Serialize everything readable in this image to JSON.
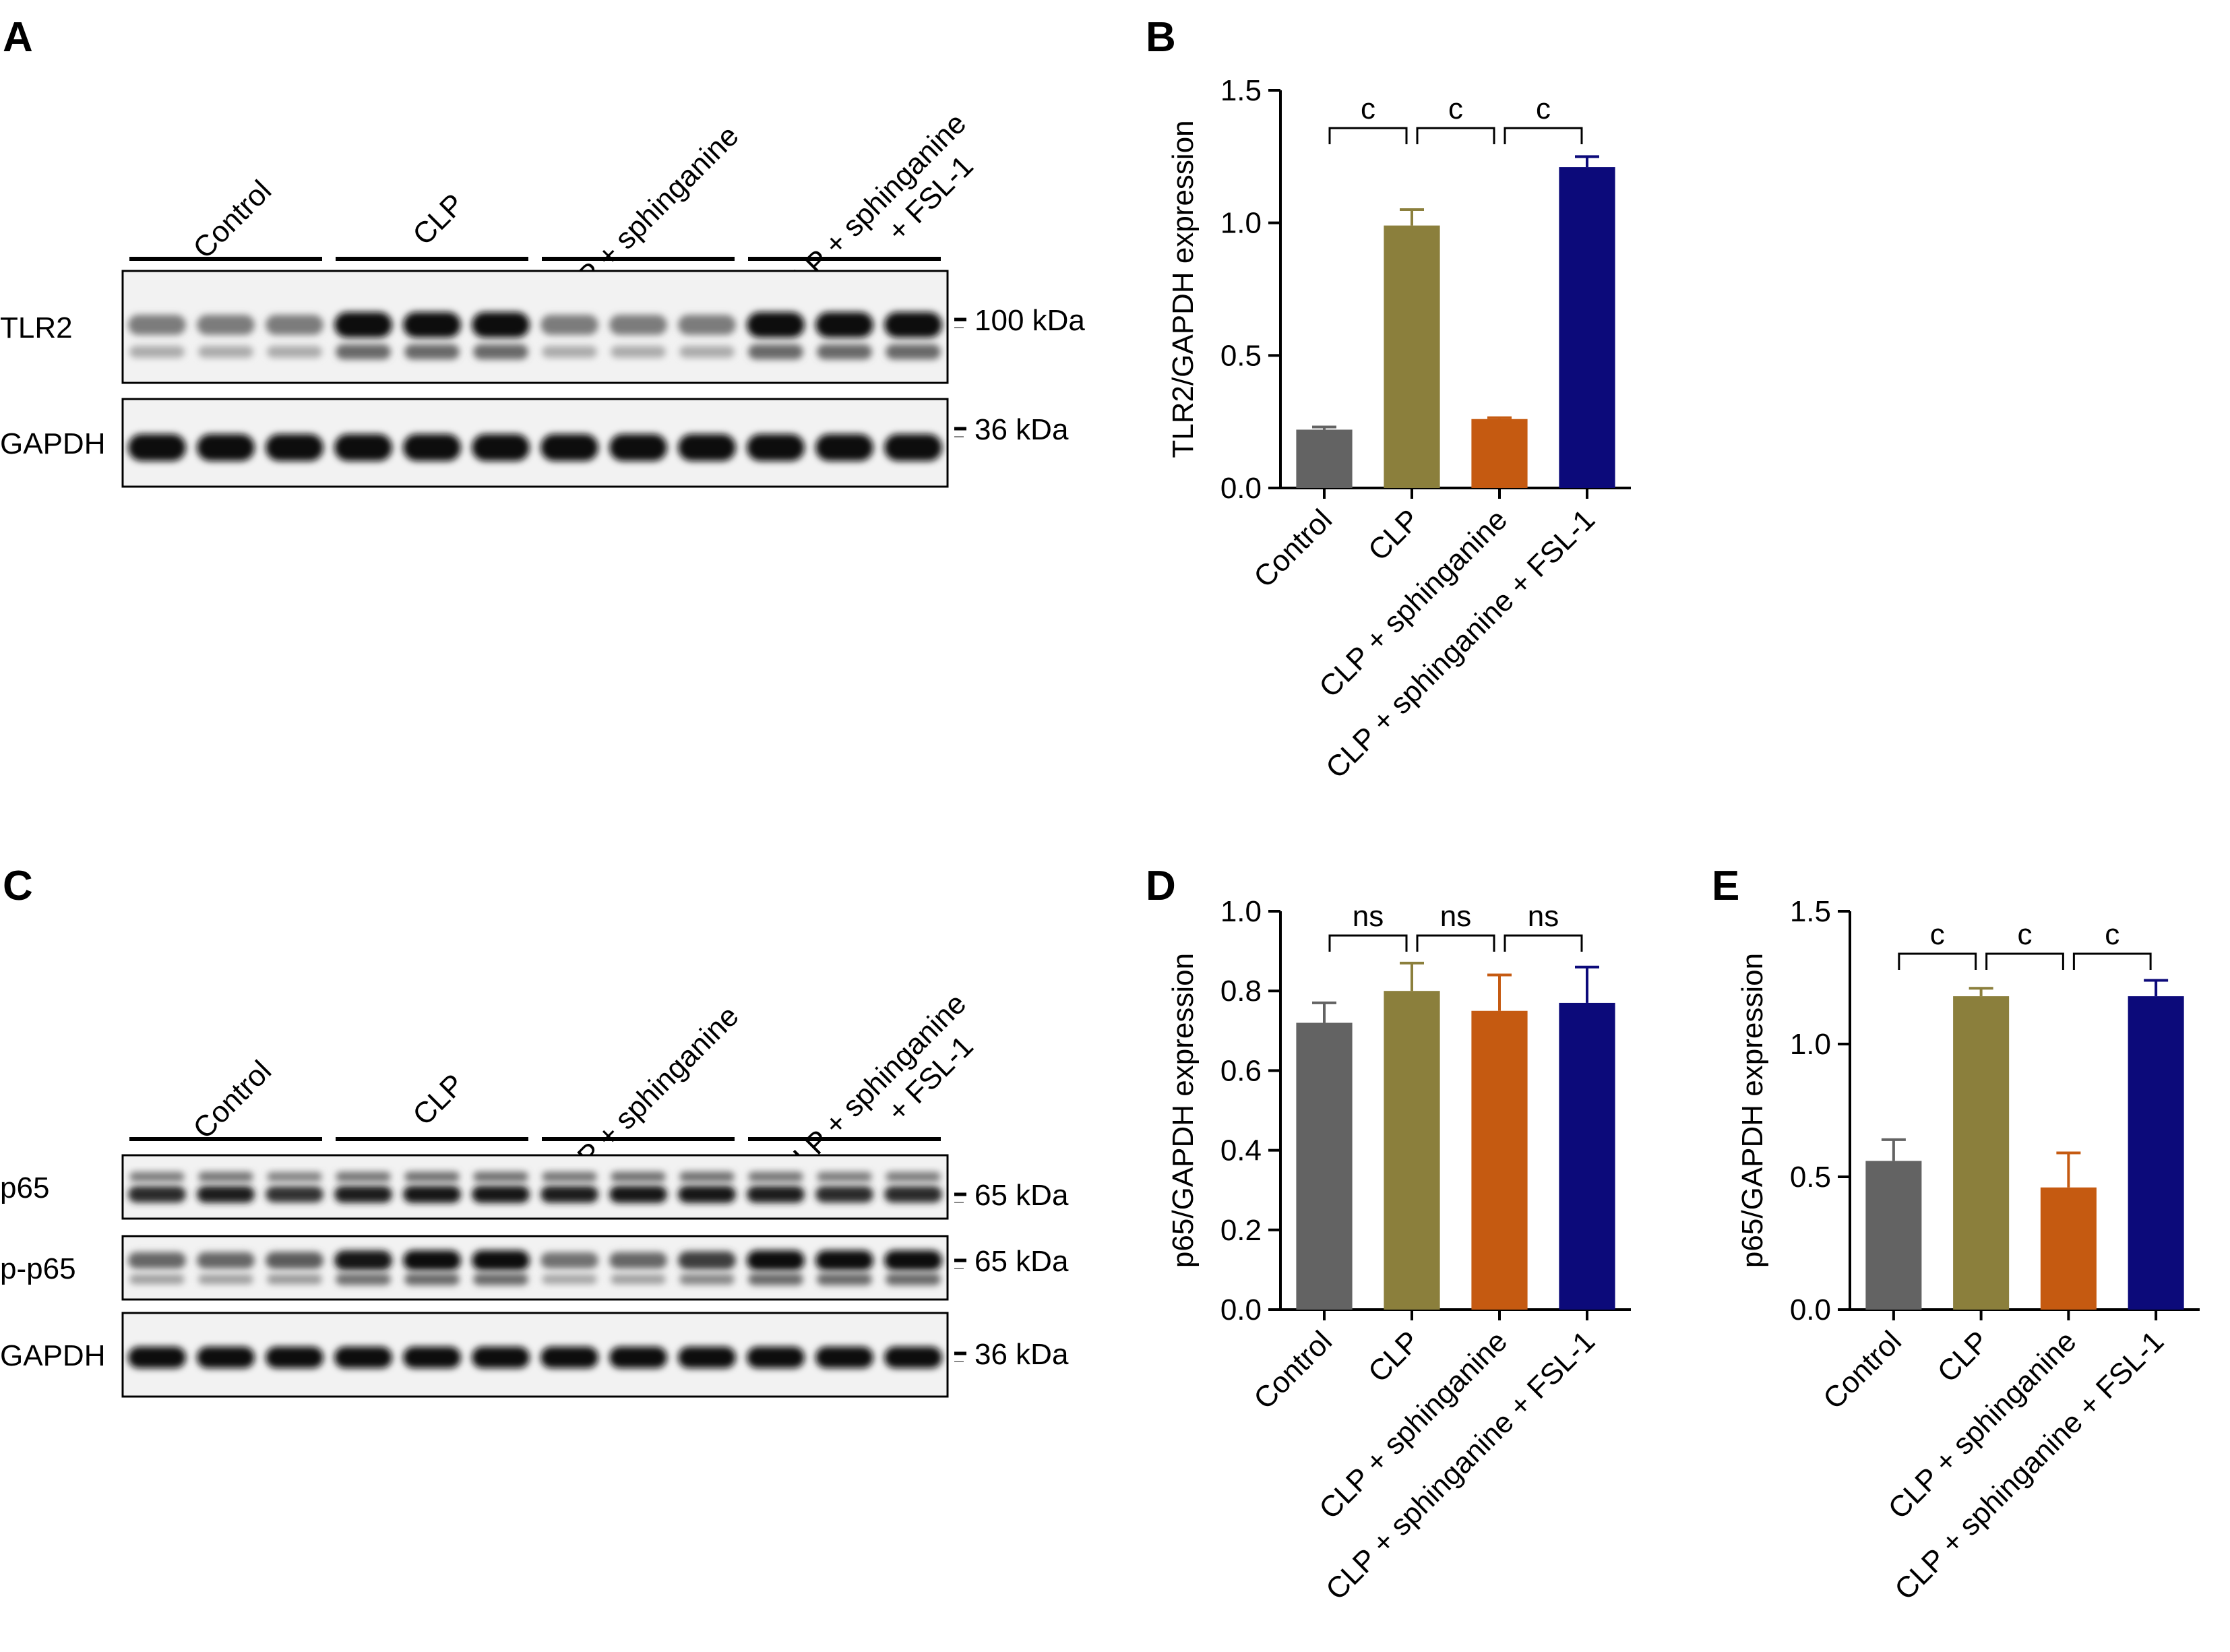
{
  "panels": {
    "A": "A",
    "B": "B",
    "C": "C",
    "D": "D",
    "E": "E"
  },
  "blot_a": {
    "groups": [
      "Control",
      "CLP",
      "CLP + sphinganine",
      "CLP + sphinganine\n+ FSL-1"
    ],
    "rows": [
      {
        "name": "TLR2",
        "marker": "100 kDa",
        "intensity": [
          0.45,
          0.45,
          0.45,
          1.0,
          1.0,
          1.0,
          0.45,
          0.45,
          0.45,
          1.0,
          1.0,
          1.0
        ]
      },
      {
        "name": "GAPDH",
        "marker": "36 kDa",
        "intensity": [
          1.0,
          1.0,
          1.0,
          1.0,
          1.0,
          1.0,
          1.0,
          1.0,
          1.0,
          1.0,
          1.0,
          1.0
        ]
      }
    ]
  },
  "blot_c": {
    "groups": [
      "Control",
      "CLP",
      "CLP + sphinganine",
      "CLP + sphinganine\n+ FSL-1"
    ],
    "rows": [
      {
        "name": "p65",
        "marker": "65 kDa",
        "intensity": [
          0.85,
          0.9,
          0.8,
          0.9,
          0.95,
          0.95,
          0.9,
          0.95,
          0.95,
          0.9,
          0.85,
          0.85
        ]
      },
      {
        "name": "p-p65",
        "marker": "65 kDa",
        "intensity": [
          0.55,
          0.55,
          0.6,
          0.95,
          1.0,
          1.0,
          0.5,
          0.55,
          0.75,
          1.0,
          1.0,
          1.0
        ]
      },
      {
        "name": "GAPDH",
        "marker": "36 kDa",
        "intensity": [
          1.0,
          1.0,
          1.0,
          1.0,
          1.0,
          1.0,
          1.0,
          1.0,
          1.0,
          1.0,
          1.0,
          1.0
        ]
      }
    ]
  },
  "colors": {
    "Control": "#636363",
    "CLP": "#8b7f3c",
    "CLP + sphinganine": "#c55a11",
    "CLP + sphinganine + FSL-1": "#0c0a7a"
  },
  "chart_data": [
    {
      "panel": "B",
      "type": "bar",
      "categories": [
        "Control",
        "CLP",
        "CLP + sphinganine",
        "CLP + sphinganine + FSL-1"
      ],
      "values": [
        0.22,
        0.99,
        0.26,
        1.21
      ],
      "errors": [
        0.01,
        0.06,
        0.005,
        0.04
      ],
      "ylabel": "TLR2/GAPDH expression",
      "ylim": [
        0,
        1.5
      ],
      "yticks": [
        "0.0",
        "0.5",
        "1.0",
        "1.5"
      ],
      "significance": [
        "c",
        "c",
        "c"
      ]
    },
    {
      "panel": "D",
      "type": "bar",
      "categories": [
        "Control",
        "CLP",
        "CLP + sphinganine",
        "CLP + sphinganine + FSL-1"
      ],
      "values": [
        0.72,
        0.8,
        0.75,
        0.77
      ],
      "errors": [
        0.05,
        0.07,
        0.09,
        0.09
      ],
      "ylabel": "p65/GAPDH expression",
      "ylim": [
        0,
        1.0
      ],
      "yticks": [
        "0.0",
        "0.2",
        "0.4",
        "0.6",
        "0.8",
        "1.0"
      ],
      "significance": [
        "ns",
        "ns",
        "ns"
      ]
    },
    {
      "panel": "E",
      "type": "bar",
      "categories": [
        "Control",
        "CLP",
        "CLP + sphinganine",
        "CLP + sphinganine + FSL-1"
      ],
      "values": [
        0.56,
        1.18,
        0.46,
        1.18
      ],
      "errors": [
        0.08,
        0.03,
        0.13,
        0.06
      ],
      "ylabel": "p65/GAPDH expression",
      "ylim": [
        0,
        1.5
      ],
      "yticks": [
        "0.0",
        "0.5",
        "1.0",
        "1.5"
      ],
      "significance": [
        "c",
        "c",
        "c"
      ]
    }
  ]
}
